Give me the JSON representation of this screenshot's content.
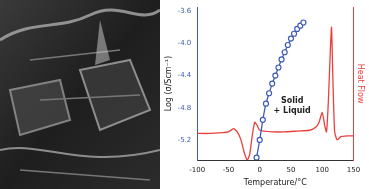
{
  "chart_data": {
    "type": "line",
    "xlabel": "Temperature/°C",
    "ylabel": "Log (σ/Scm⁻¹)",
    "y2label": "Heat Flow",
    "annotation": [
      "Solid",
      "+ Liquid"
    ],
    "xlim": [
      -100,
      150
    ],
    "xticks": [
      -100,
      -50,
      0,
      50,
      100,
      150
    ],
    "ylim": [
      -5.45,
      -3.55
    ],
    "yticks": [
      -3.6,
      {
        "value": -4,
        "label": "-4.0"
      },
      -4.4,
      -4.8,
      -5.2
    ],
    "grid": false,
    "series": [
      {
        "color": "#3f5bb5",
        "marker": "circle",
        "line_style": "solid",
        "x": [
          -5,
          0,
          5,
          10,
          15,
          20,
          25,
          30,
          35,
          40,
          45,
          50,
          55,
          60,
          65,
          70
        ],
        "values": [
          -5.42,
          -5.2,
          -4.95,
          -4.75,
          -4.62,
          -4.5,
          -4.4,
          -4.3,
          -4.2,
          -4.11,
          -4.02,
          -3.94,
          -3.88,
          -3.82,
          -3.78,
          -3.74
        ]
      },
      {
        "color": "#e8413c",
        "marker": "none",
        "line_style": "solid",
        "x": [
          -100,
          -80,
          -60,
          -50,
          -42,
          -36,
          -30,
          -25,
          -20,
          -16,
          -12,
          -8,
          -4,
          0,
          20,
          40,
          60,
          80,
          90,
          95,
          100,
          104,
          107,
          110,
          113,
          115,
          117,
          120,
          124,
          130,
          140,
          150
        ],
        "values": [
          -5.12,
          -5.12,
          -5.11,
          -5.1,
          -5.06,
          -5.1,
          -5.2,
          -5.35,
          -5.45,
          -5.38,
          -5.15,
          -4.98,
          -5.02,
          -5.08,
          -5.1,
          -5.1,
          -5.09,
          -5.08,
          -5.04,
          -4.98,
          -4.86,
          -5.02,
          -5.1,
          -4.7,
          -4.1,
          -3.8,
          -4.4,
          -5.1,
          -5.2,
          -5.16,
          -5.15,
          -5.15
        ]
      }
    ]
  }
}
